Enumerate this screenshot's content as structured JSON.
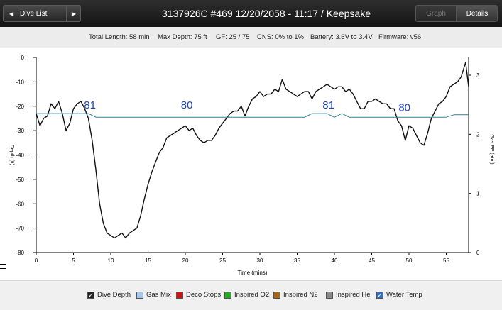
{
  "header": {
    "back_label": "Dive List",
    "back_arrow_icon": "◀",
    "forward_arrow_icon": "▶",
    "title": "3137926C #469 12/20/2058 - 11:17  / Keepsake",
    "tab_graph": "Graph",
    "tab_details": "Details",
    "active_tab": "details"
  },
  "summary": {
    "total_length": "Total Length: 58 min",
    "max_depth": "Max Depth: 75 ft",
    "gf": "GF: 25 / 75",
    "cns": "CNS: 0% to 1%",
    "battery": "Battery: 3.6V to 3.4V",
    "firmware": "Firmware: v56"
  },
  "legend": [
    {
      "label": "Dive Depth",
      "checked": true,
      "color": "#222222"
    },
    {
      "label": "Gas Mix",
      "checked": false,
      "color": "#9ec6ee"
    },
    {
      "label": "Deco Stops",
      "checked": false,
      "color": "#cc1111"
    },
    {
      "label": "Inspired O2",
      "checked": false,
      "color": "#22aa22"
    },
    {
      "label": "Inspired N2",
      "checked": false,
      "color": "#a0661a"
    },
    {
      "label": "Inspired He",
      "checked": false,
      "color": "#8a8a8a"
    },
    {
      "label": "Water Temp",
      "checked": true,
      "color": "#2f6fc2"
    }
  ],
  "chart_data": {
    "type": "line",
    "xlabel": "Time (mins)",
    "ylabel_left": "Depth (ft)",
    "ylabel_right": "Gas PP (atm)",
    "xlim": [
      0,
      58
    ],
    "ylim_left": [
      -80,
      0
    ],
    "ylim_right": [
      0,
      3.3
    ],
    "x_ticks": [
      0,
      5,
      10,
      15,
      20,
      25,
      30,
      35,
      40,
      45,
      50,
      55
    ],
    "y_ticks_left": [
      0,
      -10,
      -20,
      -30,
      -40,
      -50,
      -60,
      -70,
      -80
    ],
    "y_ticks_right": [
      0,
      1,
      2,
      3
    ],
    "grid": false,
    "series": [
      {
        "name": "Dive Depth",
        "color": "#111111",
        "axis": "left",
        "x": [
          0,
          0.5,
          1,
          1.5,
          2,
          2.5,
          3,
          3.5,
          4,
          4.5,
          5,
          5.5,
          6,
          6.5,
          7,
          7.5,
          8,
          8.5,
          9,
          9.5,
          10,
          10.5,
          11,
          11.5,
          12,
          12.5,
          13,
          13.5,
          14,
          14.5,
          15,
          15.5,
          16,
          16.5,
          17,
          17.5,
          18,
          18.5,
          19,
          19.5,
          20,
          20.5,
          21,
          21.5,
          22,
          22.5,
          23,
          23.5,
          24,
          24.5,
          25,
          25.5,
          26,
          26.5,
          27,
          27.5,
          28,
          28.5,
          29,
          29.5,
          30,
          30.5,
          31,
          31.5,
          32,
          32.5,
          33,
          33.5,
          34,
          34.5,
          35,
          35.5,
          36,
          36.5,
          37,
          37.5,
          38,
          38.5,
          39,
          39.5,
          40,
          40.5,
          41,
          41.5,
          42,
          42.5,
          43,
          43.5,
          44,
          44.5,
          45,
          45.5,
          46,
          46.5,
          47,
          47.5,
          48,
          48.5,
          49,
          49.5,
          50,
          50.5,
          51,
          51.5,
          52,
          52.5,
          53,
          53.5,
          54,
          54.5,
          55,
          55.5,
          56,
          56.5,
          57,
          57.3,
          57.6,
          58
        ],
        "y": [
          -23,
          -28,
          -25,
          -24,
          -19,
          -21,
          -18,
          -23,
          -30,
          -27,
          -21,
          -19,
          -18,
          -21,
          -25,
          -34,
          -46,
          -60,
          -68,
          -72,
          -73,
          -74,
          -73,
          -72,
          -74,
          -72,
          -71,
          -70,
          -65,
          -58,
          -52,
          -47,
          -43,
          -39,
          -37,
          -33,
          -32,
          -31,
          -30,
          -29,
          -28,
          -30,
          -29,
          -32,
          -34,
          -35,
          -34,
          -34,
          -32,
          -29,
          -27,
          -25,
          -23,
          -22,
          -22,
          -20,
          -24,
          -20,
          -17,
          -16,
          -14,
          -16,
          -15,
          -15,
          -13,
          -14,
          -9,
          -13,
          -14,
          -15,
          -16,
          -15,
          -14,
          -14,
          -17,
          -14,
          -13,
          -12,
          -11,
          -12,
          -13,
          -12,
          -12,
          -14,
          -13,
          -15,
          -18,
          -21,
          -21,
          -18,
          -18,
          -17,
          -18,
          -19,
          -19,
          -21,
          -21,
          -26,
          -28,
          -34,
          -28,
          -29,
          -32,
          -35,
          -36,
          -31,
          -25,
          -22,
          -19,
          -18,
          -16,
          -12,
          -11,
          -10,
          -8,
          -5,
          -2,
          -12
        ]
      },
      {
        "name": "Water Temp",
        "color": "#2e8296",
        "axis": "left",
        "x": [
          0,
          2,
          4,
          5,
          6,
          7,
          8,
          20,
          30,
          35,
          36,
          37,
          38,
          39,
          40,
          41,
          42,
          43,
          44,
          45,
          46,
          47,
          48,
          50,
          52,
          53,
          54,
          55,
          56,
          57,
          58
        ],
        "y": [
          -23,
          -23,
          -23,
          -23,
          -23,
          -23,
          -24.5,
          -24.5,
          -24.5,
          -24.5,
          -24.5,
          -23,
          -23,
          -23,
          -24.5,
          -23,
          -24.5,
          -24.5,
          -24.5,
          -24.5,
          -24.5,
          -24.5,
          -24.5,
          -24.5,
          -24.5,
          -24.5,
          -24.5,
          -24.5,
          -23.5,
          -23.5,
          -23.5
        ]
      }
    ],
    "annotations": [
      {
        "text": "81",
        "x": 7.2,
        "y": -21
      },
      {
        "text": "80",
        "x": 20.2,
        "y": -21
      },
      {
        "text": "81",
        "x": 39.2,
        "y": -21
      },
      {
        "text": "80",
        "x": 49.4,
        "y": -22
      }
    ],
    "label_color": "#1f44b5"
  }
}
